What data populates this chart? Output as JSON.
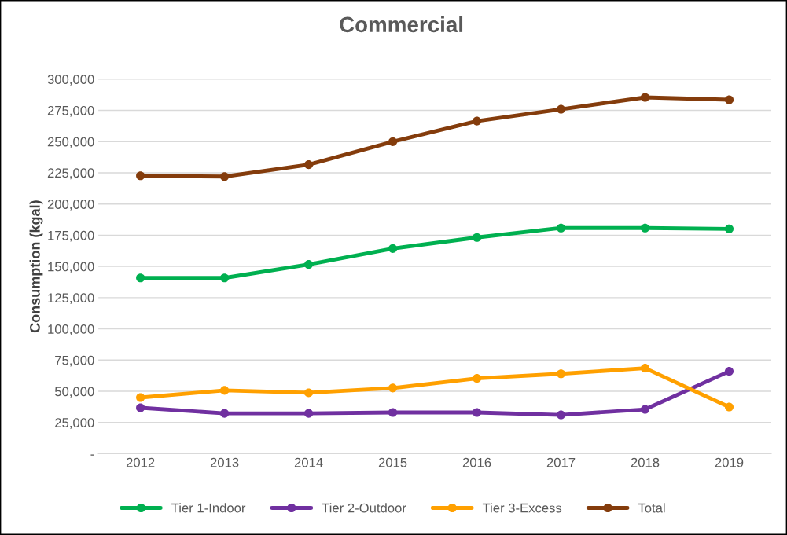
{
  "chart_data": {
    "type": "line",
    "title": "Commercial",
    "ylabel": "Consumption (kgal)",
    "categories": [
      "2012",
      "2013",
      "2014",
      "2015",
      "2016",
      "2017",
      "2018",
      "2019"
    ],
    "series": [
      {
        "name": "Tier 1-Indoor",
        "color": "#00b050",
        "values": [
          140800,
          140800,
          151600,
          164300,
          173200,
          180800,
          180800,
          180100
        ]
      },
      {
        "name": "Tier 2-Outdoor",
        "color": "#7030a0",
        "values": [
          36800,
          32300,
          32300,
          33000,
          33000,
          31100,
          35500,
          66000
        ]
      },
      {
        "name": "Tier 3-Excess",
        "color": "#ffa000",
        "values": [
          45000,
          50700,
          48800,
          52600,
          60300,
          64000,
          68500,
          37400
        ]
      },
      {
        "name": "Total",
        "color": "#843c0c",
        "values": [
          222600,
          222000,
          231500,
          249900,
          266400,
          275900,
          285400,
          283500
        ]
      }
    ],
    "ylim": [
      0,
      300000
    ],
    "yticks": [
      {
        "value": 0,
        "label": "-"
      },
      {
        "value": 25000,
        "label": "25,000"
      },
      {
        "value": 50000,
        "label": "50,000"
      },
      {
        "value": 75000,
        "label": "75,000"
      },
      {
        "value": 100000,
        "label": "100,000"
      },
      {
        "value": 125000,
        "label": "125,000"
      },
      {
        "value": 150000,
        "label": "150,000"
      },
      {
        "value": 175000,
        "label": "175,000"
      },
      {
        "value": 200000,
        "label": "200,000"
      },
      {
        "value": 225000,
        "label": "225,000"
      },
      {
        "value": 250000,
        "label": "250,000"
      },
      {
        "value": 275000,
        "label": "275,000"
      },
      {
        "value": 300000,
        "label": "300,000"
      }
    ],
    "grid": "y",
    "legend": "bottom",
    "marker": "circle",
    "line_style": "solid"
  }
}
